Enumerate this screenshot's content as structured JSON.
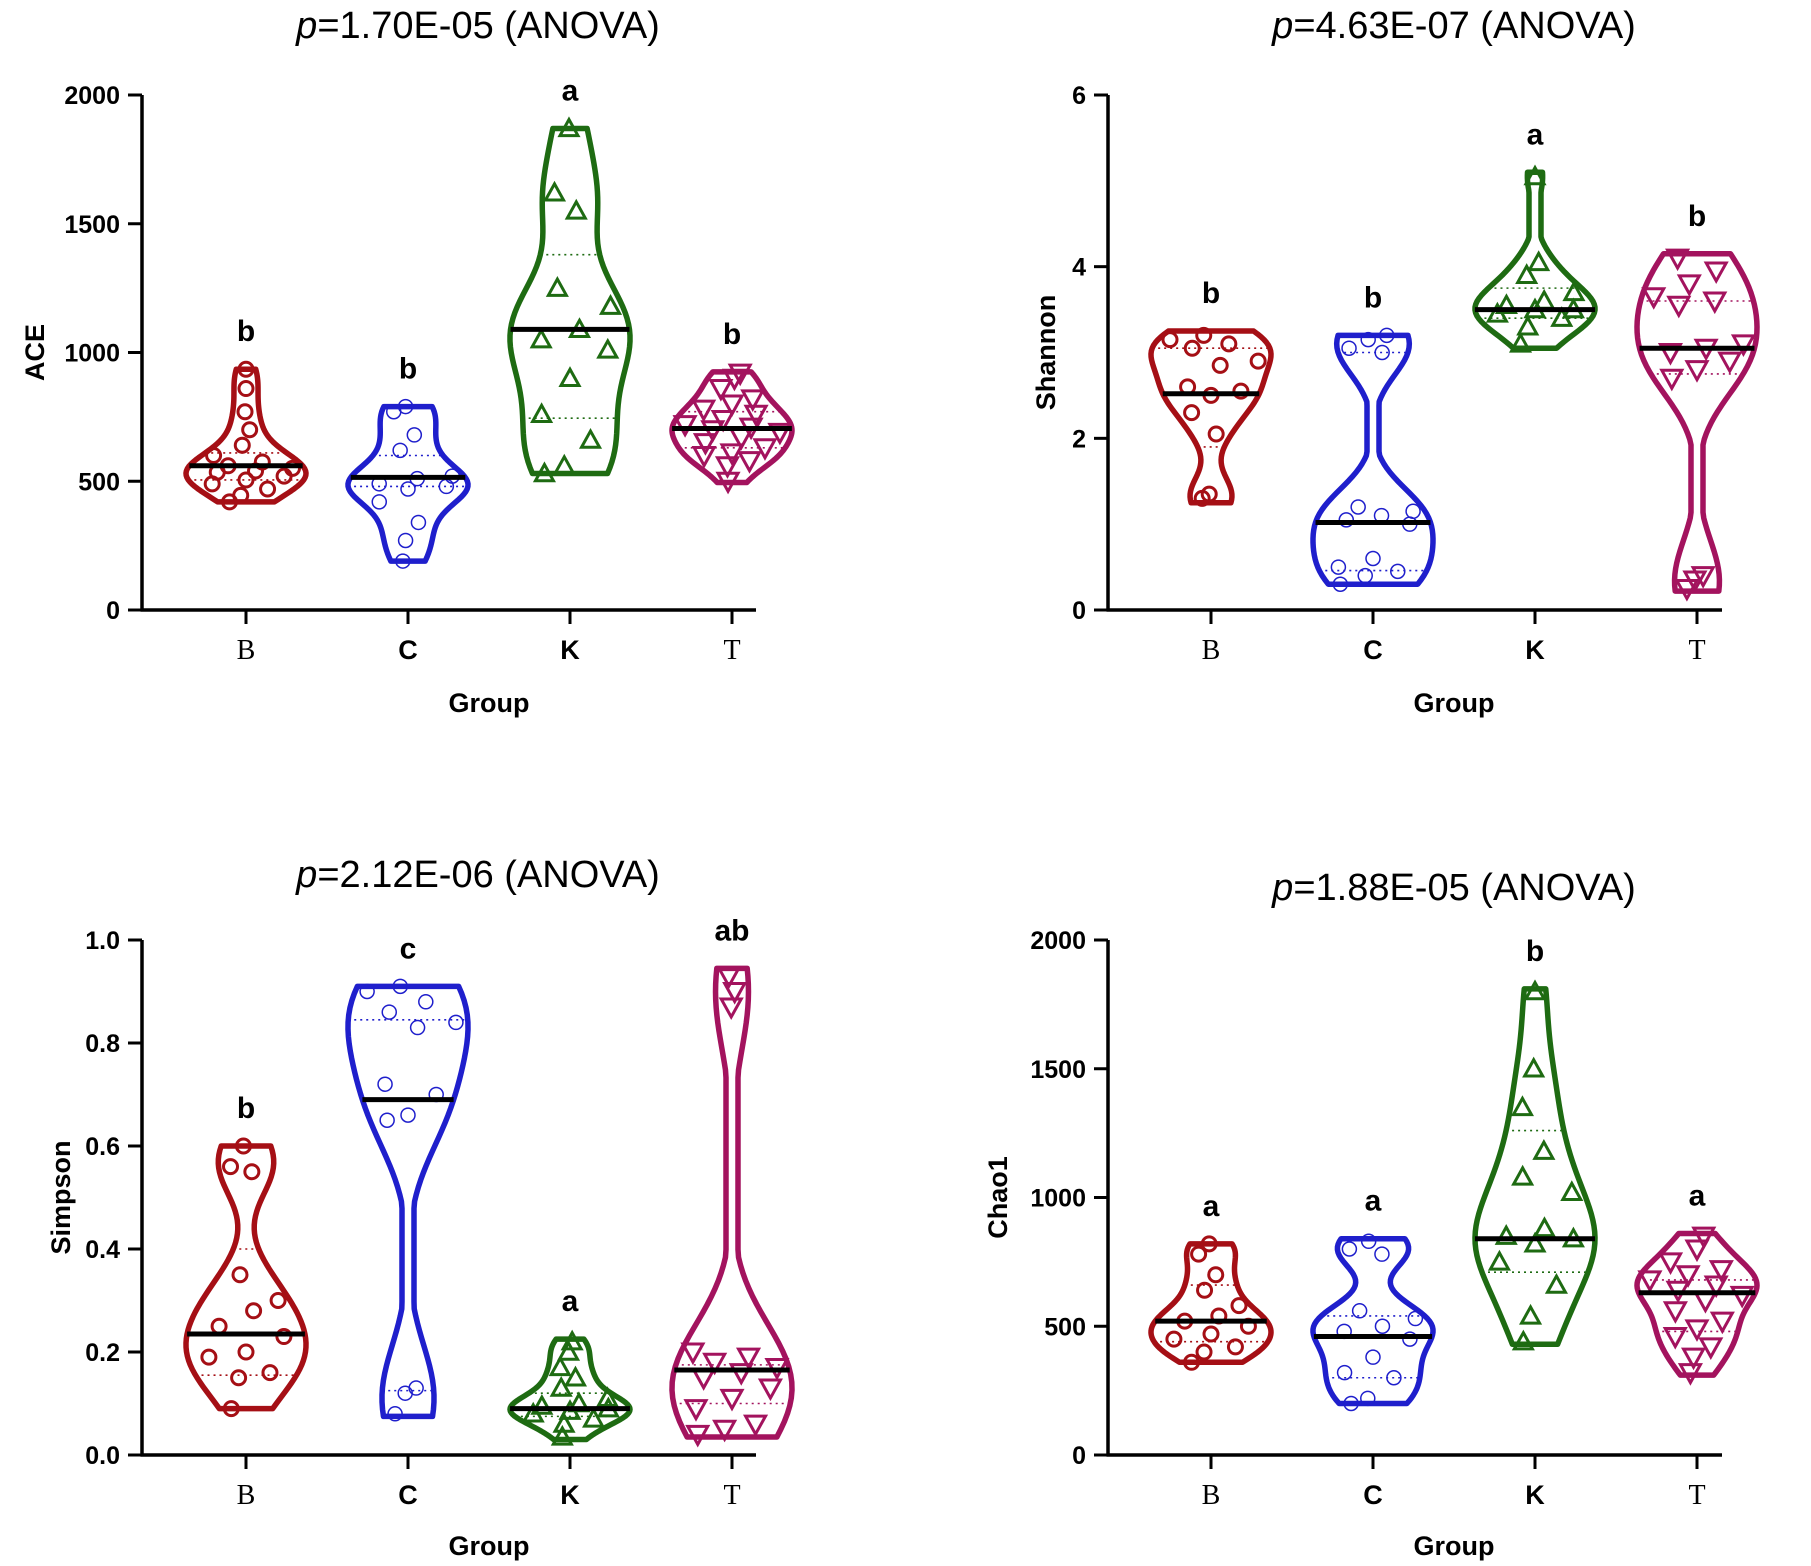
{
  "colors": {
    "B": "#A50F15",
    "C": "#1F1FCC",
    "K": "#1E6B12",
    "T": "#A3135E"
  },
  "panels": [
    {
      "id": "ace",
      "title_italic": "p",
      "title_rest": "=1.70E-05 (ANOVA)",
      "ylabel": "ACE",
      "xlabel": "Group",
      "ylim": [
        0,
        2000
      ],
      "yticks": [
        "0",
        "500",
        "1000",
        "1500",
        "2000"
      ],
      "ytick_values": [
        0,
        500,
        1000,
        1500,
        2000
      ],
      "groups": [
        {
          "name": "B",
          "letter": "b",
          "marker": "circle",
          "min": 420,
          "max": 935,
          "median": 560,
          "q1": 505,
          "q3": 610,
          "points": [
            420,
            445,
            470,
            490,
            505,
            520,
            535,
            540,
            550,
            560,
            575,
            600,
            640,
            700,
            770,
            860,
            935
          ]
        },
        {
          "name": "C",
          "letter": "b",
          "marker": "circle",
          "min": 190,
          "max": 790,
          "median": 515,
          "q1": 480,
          "q3": 600,
          "points": [
            190,
            270,
            340,
            420,
            470,
            480,
            490,
            510,
            520,
            620,
            680,
            770,
            790
          ]
        },
        {
          "name": "K",
          "letter": "a",
          "marker": "triangle-up",
          "min": 530,
          "max": 1870,
          "median": 1090,
          "q1": 745,
          "q3": 1380,
          "points": [
            530,
            560,
            660,
            760,
            900,
            1010,
            1050,
            1090,
            1180,
            1250,
            1550,
            1620,
            1870
          ]
        },
        {
          "name": "T",
          "letter": "b",
          "marker": "triangle-down",
          "min": 495,
          "max": 925,
          "median": 705,
          "q1": 630,
          "q3": 770,
          "points": [
            500,
            560,
            580,
            600,
            610,
            630,
            650,
            670,
            690,
            700,
            710,
            720,
            740,
            760,
            780,
            800,
            820,
            860,
            900,
            920
          ]
        }
      ]
    },
    {
      "id": "shannon",
      "title_italic": "p",
      "title_rest": "=4.63E-07 (ANOVA)",
      "ylabel": "Shannon",
      "xlabel": "Group",
      "ylim": [
        0,
        6
      ],
      "yticks": [
        "0",
        "2",
        "4",
        "6"
      ],
      "ytick_values": [
        0,
        2,
        4,
        6
      ],
      "groups": [
        {
          "name": "B",
          "letter": "b",
          "marker": "circle",
          "min": 1.25,
          "max": 3.25,
          "median": 2.52,
          "q1": 1.9,
          "q3": 3.05,
          "points": [
            1.3,
            1.35,
            2.05,
            2.3,
            2.5,
            2.55,
            2.6,
            2.85,
            2.9,
            3.05,
            3.1,
            3.15,
            3.2
          ]
        },
        {
          "name": "C",
          "letter": "b",
          "marker": "circle",
          "min": 0.3,
          "max": 3.2,
          "median": 1.02,
          "q1": 0.46,
          "q3": 3.0,
          "points": [
            0.3,
            0.4,
            0.45,
            0.5,
            0.6,
            1.0,
            1.05,
            1.1,
            1.15,
            1.2,
            3.0,
            3.05,
            3.15,
            3.2
          ]
        },
        {
          "name": "K",
          "letter": "a",
          "marker": "triangle-up",
          "min": 3.05,
          "max": 5.1,
          "median": 3.5,
          "q1": 3.4,
          "q3": 3.75,
          "points": [
            3.1,
            3.3,
            3.4,
            3.45,
            3.5,
            3.5,
            3.55,
            3.6,
            3.7,
            3.9,
            4.05,
            5.05
          ]
        },
        {
          "name": "T",
          "letter": "b",
          "marker": "triangle-down",
          "min": 0.22,
          "max": 4.15,
          "median": 3.05,
          "q1": 2.75,
          "q3": 3.6,
          "points": [
            0.25,
            0.35,
            0.4,
            2.7,
            2.8,
            2.9,
            3.0,
            3.05,
            3.1,
            3.55,
            3.6,
            3.65,
            3.8,
            3.95,
            4.1
          ]
        }
      ]
    },
    {
      "id": "simpson",
      "title_italic": "p",
      "title_rest": "=2.12E-06 (ANOVA)",
      "ylabel": "Simpson",
      "xlabel": "Group",
      "ylim": [
        0,
        1.0
      ],
      "yticks": [
        "0.0",
        "0.2",
        "0.4",
        "0.6",
        "0.8",
        "1.0"
      ],
      "ytick_values": [
        0,
        0.2,
        0.4,
        0.6,
        0.8,
        1.0
      ],
      "groups": [
        {
          "name": "B",
          "letter": "b",
          "marker": "circle",
          "min": 0.09,
          "max": 0.6,
          "median": 0.235,
          "q1": 0.155,
          "q3": 0.4,
          "points": [
            0.09,
            0.15,
            0.16,
            0.19,
            0.2,
            0.23,
            0.25,
            0.28,
            0.3,
            0.35,
            0.55,
            0.56,
            0.6
          ]
        },
        {
          "name": "C",
          "letter": "c",
          "marker": "circle",
          "min": 0.075,
          "max": 0.91,
          "median": 0.69,
          "q1": 0.125,
          "q3": 0.845,
          "points": [
            0.08,
            0.12,
            0.13,
            0.65,
            0.66,
            0.7,
            0.72,
            0.83,
            0.84,
            0.86,
            0.88,
            0.9,
            0.91
          ]
        },
        {
          "name": "K",
          "letter": "a",
          "marker": "triangle-up",
          "min": 0.03,
          "max": 0.225,
          "median": 0.09,
          "q1": 0.075,
          "q3": 0.12,
          "points": [
            0.035,
            0.06,
            0.07,
            0.08,
            0.085,
            0.09,
            0.095,
            0.1,
            0.11,
            0.13,
            0.15,
            0.17,
            0.2,
            0.22
          ]
        },
        {
          "name": "T",
          "letter": "ab",
          "marker": "triangle-down",
          "min": 0.035,
          "max": 0.945,
          "median": 0.165,
          "q1": 0.1,
          "q3": 0.175,
          "points": [
            0.04,
            0.05,
            0.06,
            0.09,
            0.11,
            0.13,
            0.15,
            0.16,
            0.17,
            0.18,
            0.19,
            0.2,
            0.87,
            0.9,
            0.93
          ]
        }
      ]
    },
    {
      "id": "chao1",
      "title_italic": "p",
      "title_rest": "=1.88E-05 (ANOVA)",
      "ylabel": "Chao1",
      "xlabel": "Group",
      "ylim": [
        0,
        2000
      ],
      "yticks": [
        "0",
        "500",
        "1000",
        "1500",
        "2000"
      ],
      "ytick_values": [
        0,
        500,
        1000,
        1500,
        2000
      ],
      "groups": [
        {
          "name": "B",
          "letter": "a",
          "marker": "circle",
          "min": 360,
          "max": 820,
          "median": 520,
          "q1": 440,
          "q3": 660,
          "points": [
            360,
            400,
            420,
            450,
            470,
            500,
            520,
            540,
            580,
            640,
            700,
            780,
            820
          ]
        },
        {
          "name": "C",
          "letter": "a",
          "marker": "circle",
          "min": 200,
          "max": 840,
          "median": 460,
          "q1": 300,
          "q3": 540,
          "points": [
            200,
            220,
            300,
            320,
            380,
            450,
            480,
            500,
            530,
            560,
            780,
            800,
            830
          ]
        },
        {
          "name": "K",
          "letter": "b",
          "marker": "triangle-up",
          "min": 430,
          "max": 1810,
          "median": 840,
          "q1": 710,
          "q3": 1260,
          "points": [
            440,
            540,
            660,
            750,
            820,
            840,
            850,
            880,
            1020,
            1080,
            1180,
            1350,
            1500,
            1800
          ]
        },
        {
          "name": "T",
          "letter": "a",
          "marker": "triangle-down",
          "min": 310,
          "max": 860,
          "median": 630,
          "q1": 480,
          "q3": 680,
          "points": [
            320,
            380,
            420,
            460,
            490,
            520,
            560,
            600,
            620,
            640,
            660,
            680,
            700,
            720,
            750,
            800,
            850
          ]
        }
      ]
    }
  ]
}
